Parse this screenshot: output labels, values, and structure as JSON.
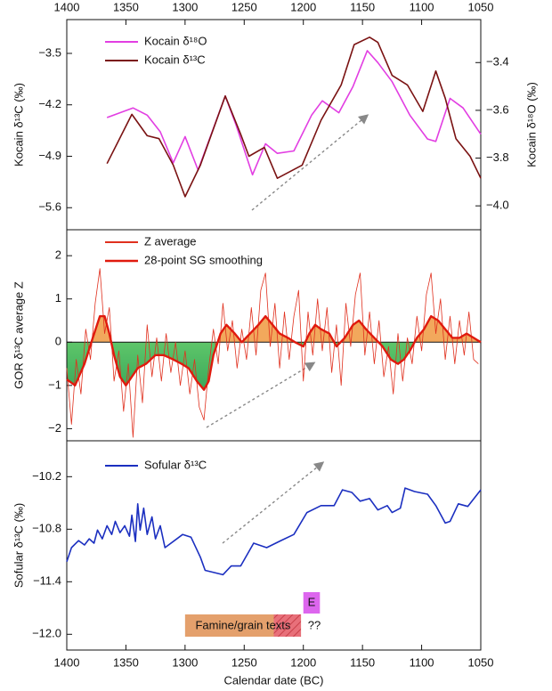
{
  "chart_data": [
    {
      "type": "line",
      "xlim": [
        1400,
        1050
      ],
      "xticks": [
        1400,
        1350,
        1300,
        1250,
        1200,
        1150,
        1100,
        1050
      ],
      "ylabel": "Kocain δ¹³C (‰)",
      "y2label": "Kocain δ¹⁸O (‰)",
      "ylim": [
        -5.9,
        -3.04
      ],
      "yticks": [
        {
          "value": -3.5,
          "label": "−3.5"
        },
        {
          "value": -4.2,
          "label": "−4.2"
        },
        {
          "value": -4.9,
          "label": "−4.9"
        },
        {
          "value": -5.6,
          "label": "−5.6"
        }
      ],
      "y2lim": [
        -4.1,
        -3.22
      ],
      "y2ticks": [
        {
          "value": -3.4,
          "label": "−3.4"
        },
        {
          "value": -3.6,
          "label": "−3.6"
        },
        {
          "value": -3.8,
          "label": "−3.8"
        },
        {
          "value": -4.0,
          "label": "−4.0"
        }
      ],
      "series": [
        {
          "name": "Kocain δ¹⁸O",
          "color": "#e23ee2",
          "axis": "y2",
          "x": [
            1366,
            1344,
            1332,
            1321,
            1310,
            1300,
            1289,
            1266,
            1257,
            1243,
            1232,
            1222,
            1208,
            1193,
            1184,
            1170,
            1158,
            1146,
            1137,
            1125,
            1110,
            1095,
            1088,
            1076,
            1065,
            1050
          ],
          "values": [
            -3.63,
            -3.59,
            -3.62,
            -3.69,
            -3.82,
            -3.71,
            -3.85,
            -3.54,
            -3.66,
            -3.87,
            -3.74,
            -3.78,
            -3.77,
            -3.62,
            -3.56,
            -3.61,
            -3.5,
            -3.35,
            -3.4,
            -3.48,
            -3.62,
            -3.72,
            -3.73,
            -3.55,
            -3.59,
            -3.7
          ]
        },
        {
          "name": "Kocain δ¹³C",
          "color": "#7a1212",
          "x": [
            1366,
            1345,
            1332,
            1322,
            1310,
            1300,
            1287,
            1266,
            1253,
            1246,
            1233,
            1222,
            1201,
            1185,
            1168,
            1157,
            1144,
            1137,
            1125,
            1112,
            1099,
            1088,
            1080,
            1071,
            1059,
            1050
          ],
          "values": [
            -5.0,
            -4.33,
            -4.62,
            -4.66,
            -5.02,
            -5.45,
            -5.02,
            -4.08,
            -4.6,
            -4.9,
            -4.78,
            -5.2,
            -5.02,
            -4.41,
            -3.93,
            -3.38,
            -3.28,
            -3.35,
            -3.8,
            -3.93,
            -4.29,
            -3.74,
            -4.11,
            -4.66,
            -4.9,
            -5.2
          ]
        }
      ]
    },
    {
      "type": "line",
      "xlim": [
        1400,
        1050
      ],
      "ylabel": "GOR δ¹³C average Z",
      "ylim": [
        -2.28,
        2.6
      ],
      "yticks": [
        2,
        1,
        0,
        {
          "value": -1,
          "label": "−1"
        },
        {
          "value": -2,
          "label": "−2"
        }
      ],
      "fill_above": "#f2a85c",
      "fill_below": "#72d672",
      "series": [
        {
          "name": "Z average",
          "color": "#e0301e",
          "width": 0.8,
          "x": [
            1400,
            1396,
            1392,
            1388,
            1384,
            1380,
            1376,
            1372,
            1368,
            1364,
            1360,
            1356,
            1352,
            1348,
            1344,
            1340,
            1336,
            1332,
            1328,
            1324,
            1320,
            1316,
            1312,
            1308,
            1304,
            1300,
            1296,
            1292,
            1288,
            1284,
            1280,
            1276,
            1272,
            1268,
            1264,
            1260,
            1256,
            1252,
            1248,
            1244,
            1240,
            1236,
            1232,
            1228,
            1224,
            1220,
            1216,
            1212,
            1208,
            1204,
            1200,
            1196,
            1192,
            1188,
            1184,
            1180,
            1176,
            1172,
            1168,
            1164,
            1160,
            1156,
            1152,
            1148,
            1144,
            1140,
            1136,
            1132,
            1128,
            1124,
            1120,
            1116,
            1112,
            1108,
            1104,
            1100,
            1096,
            1092,
            1088,
            1084,
            1080,
            1076,
            1072,
            1068,
            1064,
            1060,
            1056,
            1052
          ],
          "values": [
            -0.6,
            -1.9,
            -0.4,
            -1.2,
            0.3,
            -0.4,
            0.9,
            1.7,
            0.2,
            0.8,
            -0.9,
            -0.2,
            -1.6,
            -0.5,
            -2.2,
            -0.3,
            -1.4,
            0.4,
            -0.8,
            0.1,
            -0.9,
            0.2,
            -0.7,
            0.0,
            -1.0,
            -0.2,
            -1.2,
            -0.4,
            -1.5,
            -1.8,
            -0.6,
            0.3,
            -0.5,
            0.9,
            -0.2,
            0.5,
            -0.6,
            0.3,
            -0.4,
            0.8,
            -0.3,
            1.2,
            1.6,
            -0.1,
            0.9,
            -0.6,
            0.7,
            -0.4,
            0.6,
            1.2,
            -0.9,
            0.7,
            -0.3,
            1.0,
            -0.2,
            0.8,
            -0.7,
            0.4,
            -1.0,
            0.9,
            -0.1,
            1.1,
            1.6,
            -0.3,
            0.7,
            -0.5,
            0.5,
            -0.8,
            -0.1,
            -1.2,
            0.2,
            -0.9,
            0.1,
            -0.5,
            0.6,
            -0.2,
            1.1,
            1.6,
            0.2,
            1.0,
            -0.4,
            0.6,
            -0.5,
            0.5,
            -0.3,
            0.7,
            -0.4,
            -0.5
          ]
        },
        {
          "name": "28-point SG smoothing",
          "color": "#e01a0e",
          "width": 2.4,
          "fill": true,
          "x": [
            1400,
            1393,
            1385,
            1378,
            1372,
            1368,
            1364,
            1360,
            1355,
            1350,
            1345,
            1340,
            1333,
            1325,
            1318,
            1310,
            1303,
            1297,
            1290,
            1284,
            1280,
            1276,
            1270,
            1265,
            1258,
            1252,
            1245,
            1238,
            1232,
            1226,
            1220,
            1213,
            1207,
            1200,
            1195,
            1190,
            1185,
            1178,
            1172,
            1165,
            1158,
            1153,
            1147,
            1140,
            1133,
            1126,
            1120,
            1115,
            1110,
            1104,
            1098,
            1092,
            1086,
            1080,
            1074,
            1068,
            1062,
            1056,
            1050
          ],
          "values": [
            -0.86,
            -1.0,
            -0.5,
            0.1,
            0.6,
            0.6,
            0.2,
            -0.3,
            -0.8,
            -1.0,
            -0.8,
            -0.6,
            -0.5,
            -0.3,
            -0.3,
            -0.4,
            -0.5,
            -0.6,
            -0.9,
            -1.1,
            -0.9,
            -0.3,
            0.2,
            0.4,
            0.2,
            0.0,
            0.2,
            0.4,
            0.6,
            0.4,
            0.2,
            0.1,
            0.0,
            -0.1,
            0.2,
            0.4,
            0.3,
            0.2,
            -0.1,
            0.1,
            0.4,
            0.5,
            0.3,
            0.1,
            -0.1,
            -0.4,
            -0.5,
            -0.4,
            -0.2,
            0.1,
            0.3,
            0.6,
            0.5,
            0.3,
            0.1,
            0.1,
            0.2,
            0.1,
            0.0
          ]
        }
      ]
    },
    {
      "type": "line",
      "xlim": [
        1400,
        1050
      ],
      "xticks": [
        1400,
        1350,
        1300,
        1250,
        1200,
        1150,
        1100,
        1050
      ],
      "xlabel": "Calendar date (BC)",
      "ylabel": "Sofular δ¹³C (‰)",
      "ylim": [
        -12.18,
        -9.79
      ],
      "yticks": [
        {
          "value": -10.2,
          "label": "−10.2"
        },
        {
          "value": -10.8,
          "label": "−10.8"
        },
        {
          "value": -11.4,
          "label": "−11.4"
        },
        {
          "value": -12,
          "label": "−12.0"
        }
      ],
      "series": [
        {
          "name": "Sofular δ¹³C",
          "color": "#1b2fc0",
          "x": [
            1400,
            1396,
            1390,
            1385,
            1381,
            1377,
            1374,
            1370,
            1366,
            1362,
            1359,
            1355,
            1351,
            1347,
            1345,
            1342,
            1340,
            1338,
            1335,
            1332,
            1328,
            1325,
            1321,
            1317,
            1302,
            1295,
            1287,
            1283,
            1268,
            1261,
            1253,
            1242,
            1231,
            1219,
            1208,
            1197,
            1185,
            1174,
            1167,
            1159,
            1152,
            1144,
            1137,
            1129,
            1125,
            1118,
            1114,
            1106,
            1095,
            1088,
            1080,
            1076,
            1069,
            1061,
            1050
          ],
          "values": [
            -11.17,
            -11.01,
            -10.93,
            -10.98,
            -10.91,
            -10.96,
            -10.81,
            -10.91,
            -10.76,
            -10.86,
            -10.71,
            -10.84,
            -10.76,
            -10.88,
            -10.64,
            -10.94,
            -10.51,
            -10.81,
            -10.56,
            -10.86,
            -10.66,
            -10.91,
            -10.76,
            -11.01,
            -10.86,
            -10.89,
            -11.12,
            -11.27,
            -11.32,
            -11.22,
            -11.22,
            -10.96,
            -11.01,
            -10.93,
            -10.86,
            -10.61,
            -10.53,
            -10.53,
            -10.35,
            -10.38,
            -10.48,
            -10.45,
            -10.58,
            -10.53,
            -10.61,
            -10.56,
            -10.33,
            -10.37,
            -10.4,
            -10.53,
            -10.73,
            -10.71,
            -10.51,
            -10.54,
            -10.35
          ]
        }
      ],
      "annotations": [
        {
          "text": "Famine/grain texts",
          "x_range": [
            1300,
            1202
          ],
          "color": "#e4a06c",
          "hatch_range": [
            1225,
            1202
          ]
        },
        {
          "text": "E",
          "x_range": [
            1200,
            1186
          ],
          "color": "#dd66ee"
        },
        {
          "text": "??"
        }
      ]
    }
  ]
}
